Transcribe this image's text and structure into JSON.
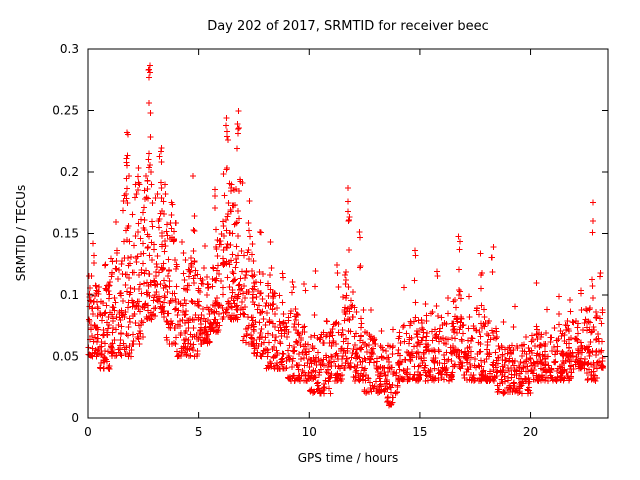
{
  "chart_data": {
    "type": "scatter",
    "title": "Day 202 of 2017, SRMTID for receiver beec",
    "xlabel": "GPS time / hours",
    "ylabel": "SRMTID / TECUs",
    "xlim": [
      0,
      23.5
    ],
    "ylim": [
      0,
      0.3
    ],
    "grid": false,
    "legend": "none",
    "marker": "plus",
    "marker_color": "#ff0000",
    "axis_color": "#000000",
    "x_ticks": [
      {
        "v": 0,
        "label": "0"
      },
      {
        "v": 5,
        "label": "5"
      },
      {
        "v": 10,
        "label": "10"
      },
      {
        "v": 15,
        "label": "15"
      },
      {
        "v": 20,
        "label": "20"
      }
    ],
    "y_ticks": [
      {
        "v": 0,
        "label": "0"
      },
      {
        "v": 0.05,
        "label": "0.05"
      },
      {
        "v": 0.1,
        "label": "0.1"
      },
      {
        "v": 0.15,
        "label": "0.15"
      },
      {
        "v": 0.2,
        "label": "0.2"
      },
      {
        "v": 0.25,
        "label": "0.25"
      },
      {
        "v": 0.3,
        "label": "0.3"
      }
    ],
    "bins_format": "[x_start_hour, width_hours, n_points, dense_low_TECU, dense_high_TECU, spike_n_points, spike_max_TECU]",
    "bins": [
      [
        0.0,
        0.5,
        60,
        0.05,
        0.12,
        3,
        0.15
      ],
      [
        0.5,
        0.5,
        55,
        0.04,
        0.11,
        2,
        0.13
      ],
      [
        1.0,
        0.5,
        55,
        0.05,
        0.13,
        3,
        0.16
      ],
      [
        1.5,
        0.5,
        60,
        0.05,
        0.2,
        6,
        0.25
      ],
      [
        2.0,
        0.5,
        60,
        0.06,
        0.19,
        4,
        0.21
      ],
      [
        2.5,
        0.5,
        65,
        0.08,
        0.22,
        8,
        0.29
      ],
      [
        3.0,
        0.5,
        60,
        0.08,
        0.2,
        4,
        0.22
      ],
      [
        3.5,
        0.5,
        55,
        0.06,
        0.16,
        3,
        0.19
      ],
      [
        4.0,
        0.5,
        50,
        0.05,
        0.13,
        2,
        0.15
      ],
      [
        4.5,
        0.5,
        55,
        0.05,
        0.13,
        5,
        0.2
      ],
      [
        5.0,
        0.5,
        55,
        0.06,
        0.12,
        2,
        0.14
      ],
      [
        5.5,
        0.5,
        55,
        0.07,
        0.15,
        4,
        0.19
      ],
      [
        6.0,
        0.5,
        60,
        0.08,
        0.2,
        7,
        0.26
      ],
      [
        6.5,
        0.5,
        60,
        0.08,
        0.2,
        6,
        0.25
      ],
      [
        7.0,
        0.5,
        55,
        0.06,
        0.15,
        3,
        0.18
      ],
      [
        7.5,
        0.5,
        50,
        0.05,
        0.13,
        2,
        0.16
      ],
      [
        8.0,
        0.5,
        50,
        0.04,
        0.11,
        3,
        0.15
      ],
      [
        8.5,
        0.5,
        45,
        0.04,
        0.1,
        2,
        0.12
      ],
      [
        9.0,
        0.5,
        45,
        0.03,
        0.09,
        3,
        0.13
      ],
      [
        9.5,
        0.5,
        45,
        0.03,
        0.08,
        2,
        0.11
      ],
      [
        10.0,
        0.5,
        45,
        0.02,
        0.07,
        3,
        0.12
      ],
      [
        10.5,
        0.5,
        45,
        0.02,
        0.07,
        2,
        0.1
      ],
      [
        11.0,
        0.5,
        45,
        0.03,
        0.08,
        3,
        0.13
      ],
      [
        11.5,
        0.5,
        50,
        0.04,
        0.12,
        7,
        0.19
      ],
      [
        12.0,
        0.5,
        50,
        0.03,
        0.09,
        4,
        0.16
      ],
      [
        12.5,
        0.5,
        45,
        0.02,
        0.07,
        1,
        0.09
      ],
      [
        13.0,
        0.5,
        45,
        0.02,
        0.06,
        1,
        0.08
      ],
      [
        13.5,
        0.5,
        45,
        0.01,
        0.06,
        1,
        0.08
      ],
      [
        14.0,
        0.5,
        45,
        0.03,
        0.07,
        3,
        0.11
      ],
      [
        14.5,
        0.5,
        50,
        0.03,
        0.08,
        5,
        0.14
      ],
      [
        15.0,
        0.5,
        45,
        0.03,
        0.08,
        2,
        0.1
      ],
      [
        15.5,
        0.5,
        45,
        0.03,
        0.09,
        3,
        0.12
      ],
      [
        16.0,
        0.5,
        45,
        0.03,
        0.08,
        2,
        0.1
      ],
      [
        16.5,
        0.5,
        50,
        0.04,
        0.1,
        6,
        0.17
      ],
      [
        17.0,
        0.5,
        45,
        0.03,
        0.08,
        2,
        0.1
      ],
      [
        17.5,
        0.5,
        45,
        0.03,
        0.09,
        5,
        0.15
      ],
      [
        18.0,
        0.5,
        45,
        0.03,
        0.08,
        4,
        0.15
      ],
      [
        18.5,
        0.5,
        45,
        0.02,
        0.06,
        1,
        0.08
      ],
      [
        19.0,
        0.5,
        45,
        0.02,
        0.06,
        2,
        0.1
      ],
      [
        19.5,
        0.5,
        45,
        0.02,
        0.06,
        1,
        0.08
      ],
      [
        20.0,
        0.5,
        45,
        0.03,
        0.07,
        3,
        0.11
      ],
      [
        20.5,
        0.5,
        45,
        0.03,
        0.07,
        1,
        0.09
      ],
      [
        21.0,
        0.5,
        50,
        0.03,
        0.08,
        2,
        0.1
      ],
      [
        21.5,
        0.5,
        50,
        0.03,
        0.08,
        2,
        0.1
      ],
      [
        22.0,
        0.5,
        50,
        0.04,
        0.08,
        3,
        0.11
      ],
      [
        22.5,
        0.5,
        55,
        0.03,
        0.09,
        6,
        0.185
      ],
      [
        23.0,
        0.3,
        25,
        0.04,
        0.09,
        2,
        0.12
      ]
    ]
  }
}
